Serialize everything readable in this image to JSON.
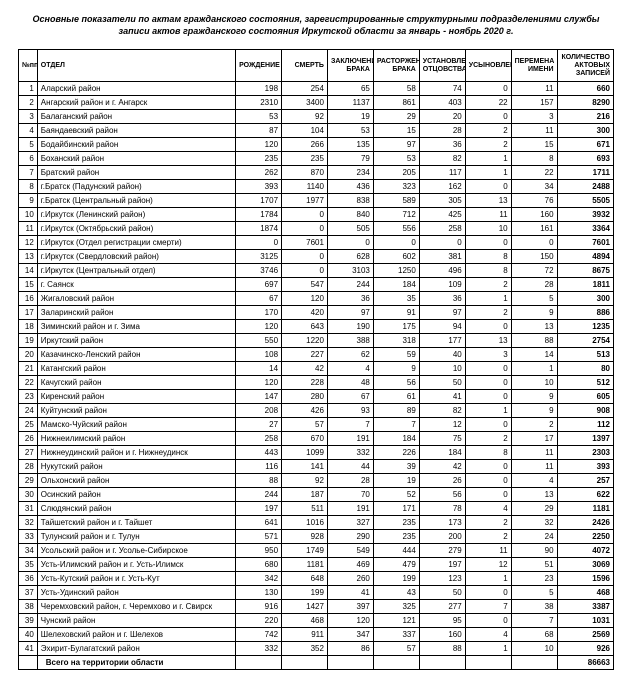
{
  "title": "Основные показатели по актам гражданского состояния, зарегистрированные структурными подразделениями службы записи актов гражданского состояния Иркутской области за январь - ноябрь 2020 г.",
  "columns": [
    "№пп",
    "ОТДЕЛ",
    "РОЖДЕНИЕ",
    "СМЕРТЬ",
    "ЗАКЛЮЧЕНИЕ БРАКА",
    "РАСТОРЖЕНИЕ БРАКА",
    "УСТАНОВЛЕНИЕ ОТЦОВСТВА",
    "УСЫНОВЛЕНИЕ",
    "ПЕРЕМЕНА ИМЕНИ",
    "КОЛИЧЕСТВО АКТОВЫХ ЗАПИСЕЙ"
  ],
  "rows": [
    [
      1,
      "Аларский район",
      198,
      254,
      65,
      58,
      74,
      0,
      11,
      660
    ],
    [
      2,
      "Ангарский район и г. Ангарск",
      2310,
      3400,
      1137,
      861,
      403,
      22,
      157,
      8290
    ],
    [
      3,
      "Балаганский район",
      53,
      92,
      19,
      29,
      20,
      0,
      3,
      216
    ],
    [
      4,
      "Баяндаевский район",
      87,
      104,
      53,
      15,
      28,
      2,
      11,
      300
    ],
    [
      5,
      "Бодайбинский район",
      120,
      266,
      135,
      97,
      36,
      2,
      15,
      671
    ],
    [
      6,
      "Боханский район",
      235,
      235,
      79,
      53,
      82,
      1,
      8,
      693
    ],
    [
      7,
      "Братский район",
      262,
      870,
      234,
      205,
      117,
      1,
      22,
      1711
    ],
    [
      8,
      "г.Братск (Падунский район)",
      393,
      1140,
      436,
      323,
      162,
      0,
      34,
      2488
    ],
    [
      9,
      "г.Братск (Центральный район)",
      1707,
      1977,
      838,
      589,
      305,
      13,
      76,
      5505
    ],
    [
      10,
      "г.Иркутск (Ленинский район)",
      1784,
      0,
      840,
      712,
      425,
      11,
      160,
      3932
    ],
    [
      11,
      "г.Иркутск (Октябрьский район)",
      1874,
      0,
      505,
      556,
      258,
      10,
      161,
      3364
    ],
    [
      12,
      "г.Иркутск (Отдел регистрации смерти)",
      0,
      7601,
      0,
      0,
      0,
      0,
      0,
      7601
    ],
    [
      13,
      "г.Иркутск (Свердловский район)",
      3125,
      0,
      628,
      602,
      381,
      8,
      150,
      4894
    ],
    [
      14,
      "г.Иркутск (Центральный отдел)",
      3746,
      0,
      3103,
      1250,
      496,
      8,
      72,
      8675
    ],
    [
      15,
      "г. Саянск",
      697,
      547,
      244,
      184,
      109,
      2,
      28,
      1811
    ],
    [
      16,
      "Жигаловский район",
      67,
      120,
      36,
      35,
      36,
      1,
      5,
      300
    ],
    [
      17,
      "Заларинский район",
      170,
      420,
      97,
      91,
      97,
      2,
      9,
      886
    ],
    [
      18,
      "Зиминский район и г. Зима",
      120,
      643,
      190,
      175,
      94,
      0,
      13,
      1235
    ],
    [
      19,
      "Иркутский район",
      550,
      1220,
      388,
      318,
      177,
      13,
      88,
      2754
    ],
    [
      20,
      "Казачинско-Ленский район",
      108,
      227,
      62,
      59,
      40,
      3,
      14,
      513
    ],
    [
      21,
      "Катангский район",
      14,
      42,
      4,
      9,
      10,
      0,
      1,
      80
    ],
    [
      22,
      "Качугский район",
      120,
      228,
      48,
      56,
      50,
      0,
      10,
      512
    ],
    [
      23,
      "Киренский район",
      147,
      280,
      67,
      61,
      41,
      0,
      9,
      605
    ],
    [
      24,
      "Куйтунский район",
      208,
      426,
      93,
      89,
      82,
      1,
      9,
      908
    ],
    [
      25,
      "Мамско-Чуйский район",
      27,
      57,
      7,
      7,
      12,
      0,
      2,
      112
    ],
    [
      26,
      "Нижнеилимский район",
      258,
      670,
      191,
      184,
      75,
      2,
      17,
      1397
    ],
    [
      27,
      "Нижнеудинский район и г. Нижнеудинск",
      443,
      1099,
      332,
      226,
      184,
      8,
      11,
      2303
    ],
    [
      28,
      "Нукутский район",
      116,
      141,
      44,
      39,
      42,
      0,
      11,
      393
    ],
    [
      29,
      "Ольхонский район",
      88,
      92,
      28,
      19,
      26,
      0,
      4,
      257
    ],
    [
      30,
      "Осинский район",
      244,
      187,
      70,
      52,
      56,
      0,
      13,
      622
    ],
    [
      31,
      "Слюдянский район",
      197,
      511,
      191,
      171,
      78,
      4,
      29,
      1181
    ],
    [
      32,
      "Тайшетский район и г. Тайшет",
      641,
      1016,
      327,
      235,
      173,
      2,
      32,
      2426
    ],
    [
      33,
      "Тулунский район и г. Тулун",
      571,
      928,
      290,
      235,
      200,
      2,
      24,
      2250
    ],
    [
      34,
      "Усольский район и г. Усолье-Сибирское",
      950,
      1749,
      549,
      444,
      279,
      11,
      90,
      4072
    ],
    [
      35,
      "Усть-Илимский район и г. Усть-Илимск",
      680,
      1181,
      469,
      479,
      197,
      12,
      51,
      3069
    ],
    [
      36,
      "Усть-Кутский район и г. Усть-Кут",
      342,
      648,
      260,
      199,
      123,
      1,
      23,
      1596
    ],
    [
      37,
      "Усть-Удинский район",
      130,
      199,
      41,
      43,
      50,
      0,
      5,
      468
    ],
    [
      38,
      "Черемховский район, г. Черемхово и г. Свирск",
      916,
      1427,
      397,
      325,
      277,
      7,
      38,
      3387
    ],
    [
      39,
      "Чунский район",
      220,
      468,
      120,
      121,
      95,
      0,
      7,
      1031
    ],
    [
      40,
      "Шелеховский район и г. Шелехов",
      742,
      911,
      347,
      337,
      160,
      4,
      68,
      2569
    ],
    [
      41,
      "Эхирит-Булагатский район",
      332,
      352,
      86,
      57,
      88,
      1,
      10,
      926
    ]
  ],
  "total_label": "Всего на территории области",
  "total_value": 86663,
  "colors": {
    "border": "#000000",
    "bg": "#ffffff",
    "text": "#000000"
  },
  "fontsize": {
    "body": 8,
    "title": 9,
    "header": 7
  }
}
